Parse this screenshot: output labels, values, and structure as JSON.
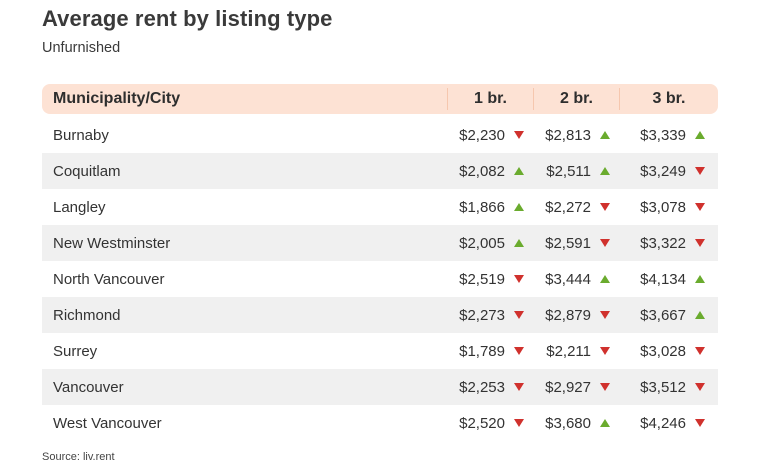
{
  "title": "Average rent by listing type",
  "subtitle": "Unfurnished",
  "source": "Source: liv.rent",
  "colors": {
    "up": "#6aab2e",
    "down": "#d0312d",
    "header_bg": "#fde2d4",
    "alt_row": "#f0f0f0"
  },
  "chart_data": {
    "type": "table",
    "title": "Average rent by listing type",
    "subtitle": "Unfurnished",
    "columns": [
      "Municipality/City",
      "1 br.",
      "2 br.",
      "3 br."
    ],
    "rows": [
      {
        "city": "Burnaby",
        "values": [
          "$2,230",
          "$2,813",
          "$3,339"
        ],
        "trend": [
          "down",
          "up",
          "up"
        ]
      },
      {
        "city": "Coquitlam",
        "values": [
          "$2,082",
          "$2,511",
          "$3,249"
        ],
        "trend": [
          "up",
          "up",
          "down"
        ]
      },
      {
        "city": "Langley",
        "values": [
          "$1,866",
          "$2,272",
          "$3,078"
        ],
        "trend": [
          "up",
          "down",
          "down"
        ]
      },
      {
        "city": "New Westminster",
        "values": [
          "$2,005",
          "$2,591",
          "$3,322"
        ],
        "trend": [
          "up",
          "down",
          "down"
        ]
      },
      {
        "city": "North Vancouver",
        "values": [
          "$2,519",
          "$3,444",
          "$4,134"
        ],
        "trend": [
          "down",
          "up",
          "up"
        ]
      },
      {
        "city": "Richmond",
        "values": [
          "$2,273",
          "$2,879",
          "$3,667"
        ],
        "trend": [
          "down",
          "down",
          "up"
        ]
      },
      {
        "city": "Surrey",
        "values": [
          "$1,789",
          "$2,211",
          "$3,028"
        ],
        "trend": [
          "down",
          "down",
          "down"
        ]
      },
      {
        "city": "Vancouver",
        "values": [
          "$2,253",
          "$2,927",
          "$3,512"
        ],
        "trend": [
          "down",
          "down",
          "down"
        ]
      },
      {
        "city": "West Vancouver",
        "values": [
          "$2,520",
          "$3,680",
          "$4,246"
        ],
        "trend": [
          "down",
          "up",
          "down"
        ]
      }
    ],
    "source": "Source: liv.rent"
  }
}
